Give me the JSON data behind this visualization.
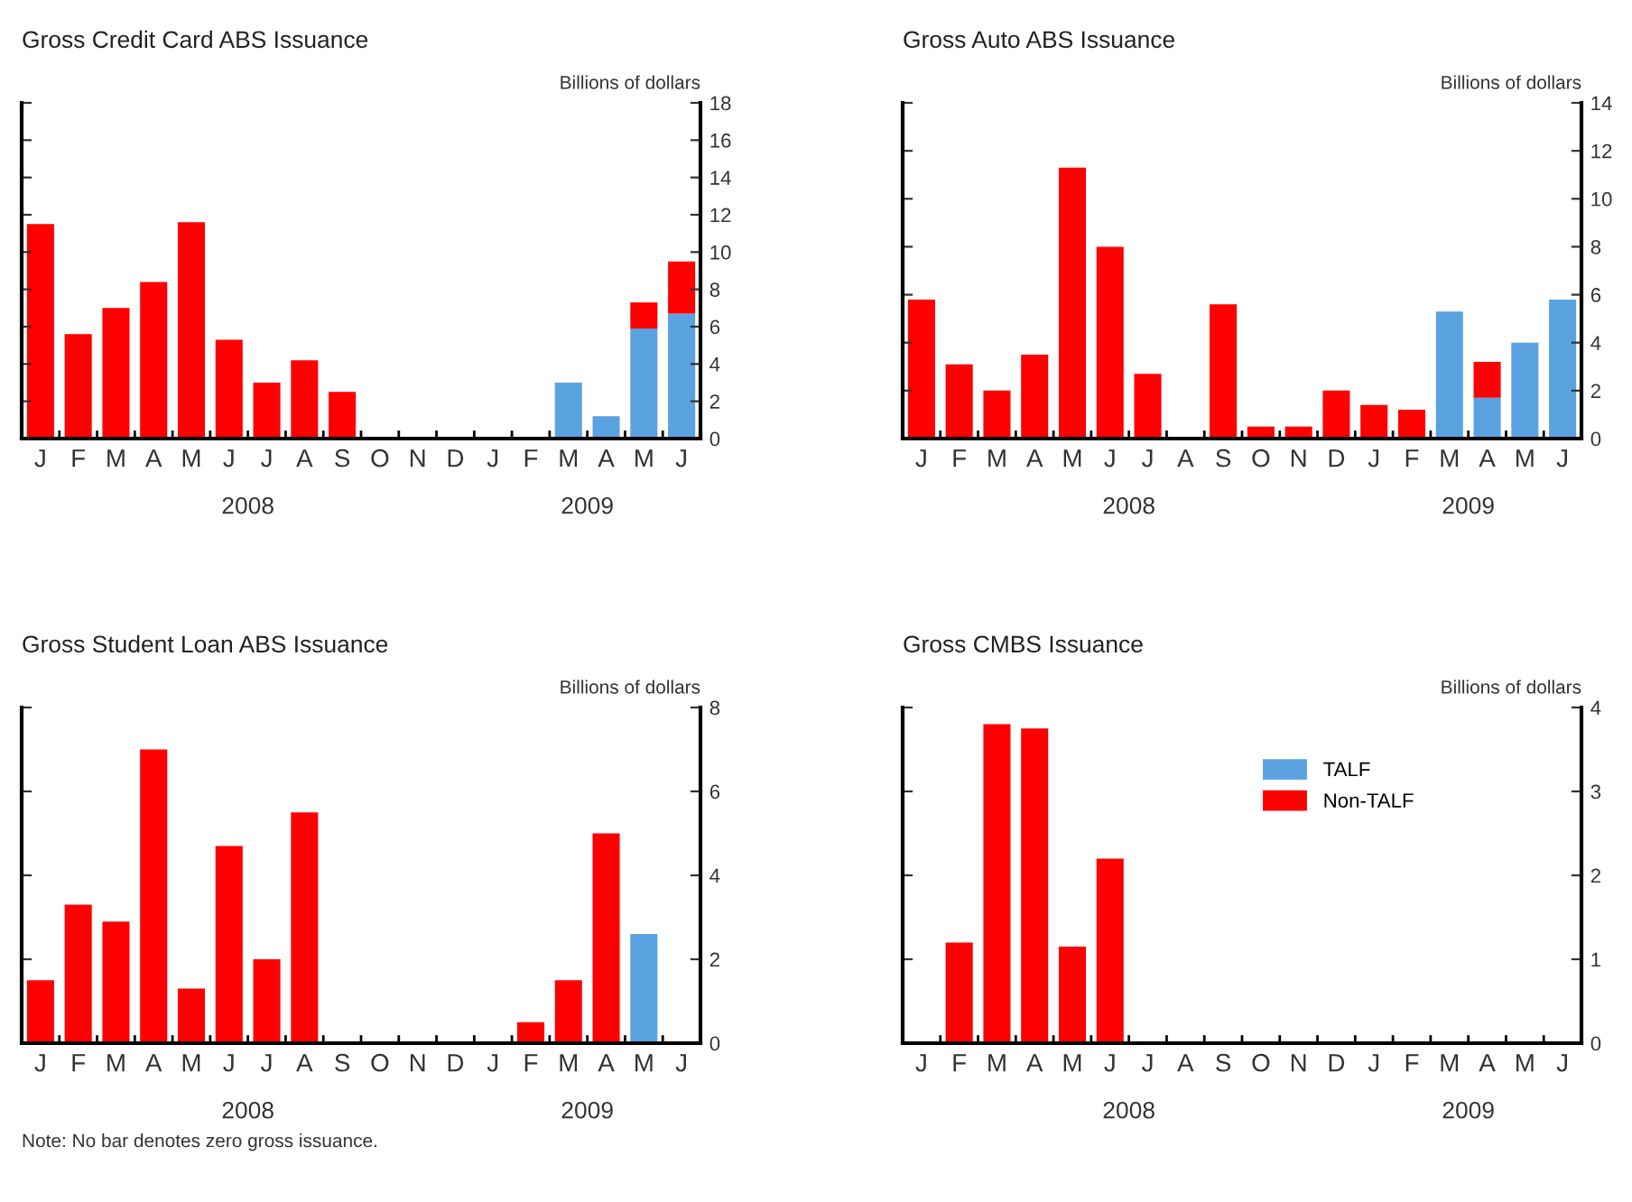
{
  "chart_data": [
    {
      "type": "bar",
      "title": "Gross Credit Card ABS Issuance",
      "ylabel": "Billions of dollars",
      "stacked": true,
      "grid": false,
      "legend": false,
      "tick_labels": "y",
      "categories": [
        "J",
        "F",
        "M",
        "A",
        "M",
        "J",
        "J",
        "A",
        "S",
        "O",
        "N",
        "D",
        "J",
        "F",
        "M",
        "A",
        "M",
        "J"
      ],
      "series": [
        {
          "color": "#5ba3e0",
          "values": [
            null,
            null,
            null,
            null,
            null,
            null,
            null,
            null,
            null,
            null,
            null,
            null,
            null,
            null,
            3.0,
            1.2,
            5.9,
            6.7
          ]
        },
        {
          "color": "#ff0000",
          "values": [
            11.5,
            5.6,
            7.0,
            8.4,
            11.6,
            5.3,
            3.0,
            4.2,
            2.5,
            null,
            null,
            null,
            null,
            null,
            null,
            null,
            1.4,
            2.8
          ]
        }
      ],
      "ylim": [
        0,
        18
      ],
      "yticks": [
        0,
        2,
        4,
        6,
        8,
        10,
        12,
        14,
        16,
        18
      ],
      "annotations": [
        "2008",
        "2009"
      ]
    },
    {
      "type": "bar",
      "title": "Gross Auto ABS Issuance",
      "ylabel": "Billions of dollars",
      "stacked": true,
      "grid": false,
      "legend": false,
      "tick_labels": "y",
      "categories": [
        "J",
        "F",
        "M",
        "A",
        "M",
        "J",
        "J",
        "A",
        "S",
        "O",
        "N",
        "D",
        "J",
        "F",
        "M",
        "A",
        "M",
        "J"
      ],
      "series": [
        {
          "color": "#5ba3e0",
          "values": [
            null,
            null,
            null,
            null,
            null,
            null,
            null,
            null,
            null,
            null,
            null,
            null,
            null,
            null,
            5.3,
            1.7,
            4.0,
            5.8
          ]
        },
        {
          "color": "#ff0000",
          "values": [
            5.8,
            3.1,
            2.0,
            3.5,
            11.3,
            8.0,
            2.7,
            null,
            5.6,
            0.5,
            0.5,
            2.0,
            1.4,
            1.2,
            null,
            1.5,
            null,
            null
          ]
        }
      ],
      "ylim": [
        0,
        14
      ],
      "yticks": [
        0,
        2,
        4,
        6,
        8,
        10,
        12,
        14
      ],
      "annotations": [
        "2008",
        "2009"
      ]
    },
    {
      "type": "bar",
      "title": "Gross Student Loan ABS Issuance",
      "ylabel": "Billions of dollars",
      "stacked": true,
      "grid": false,
      "legend": false,
      "tick_labels": "y",
      "categories": [
        "J",
        "F",
        "M",
        "A",
        "M",
        "J",
        "J",
        "A",
        "S",
        "O",
        "N",
        "D",
        "J",
        "F",
        "M",
        "A",
        "M",
        "J"
      ],
      "series": [
        {
          "color": "#5ba3e0",
          "values": [
            null,
            null,
            null,
            null,
            null,
            null,
            null,
            null,
            null,
            null,
            null,
            null,
            null,
            null,
            null,
            null,
            2.6,
            null
          ]
        },
        {
          "color": "#ff0000",
          "values": [
            1.5,
            3.3,
            2.9,
            7.0,
            1.3,
            4.7,
            2.0,
            5.5,
            null,
            null,
            null,
            null,
            null,
            0.5,
            1.5,
            5.0,
            null,
            null
          ]
        }
      ],
      "ylim": [
        0,
        8
      ],
      "yticks": [
        0,
        2,
        4,
        6,
        8
      ],
      "annotations": [
        "2008",
        "2009"
      ]
    },
    {
      "type": "bar",
      "title": "Gross CMBS Issuance",
      "ylabel": "Billions of dollars",
      "stacked": true,
      "grid": false,
      "legend": "top right",
      "tick_labels": "y",
      "categories": [
        "J",
        "F",
        "M",
        "A",
        "M",
        "J",
        "J",
        "A",
        "S",
        "O",
        "N",
        "D",
        "J",
        "F",
        "M",
        "A",
        "M",
        "J"
      ],
      "series": [
        {
          "name": "TALF",
          "color": "#5ba3e0",
          "values": [
            null,
            null,
            null,
            null,
            null,
            null,
            null,
            null,
            null,
            null,
            null,
            null,
            null,
            null,
            null,
            null,
            null,
            null
          ]
        },
        {
          "name": "Non-TALF",
          "color": "#ff0000",
          "values": [
            null,
            1.2,
            3.8,
            3.75,
            1.15,
            2.2,
            null,
            null,
            null,
            null,
            null,
            null,
            null,
            null,
            null,
            null,
            null,
            null
          ]
        }
      ],
      "ylim": [
        0,
        4
      ],
      "yticks": [
        0,
        1,
        2,
        3,
        4
      ],
      "annotations": [
        "2008",
        "2009",
        "Note: No bar denotes zero gross issuance."
      ]
    }
  ]
}
